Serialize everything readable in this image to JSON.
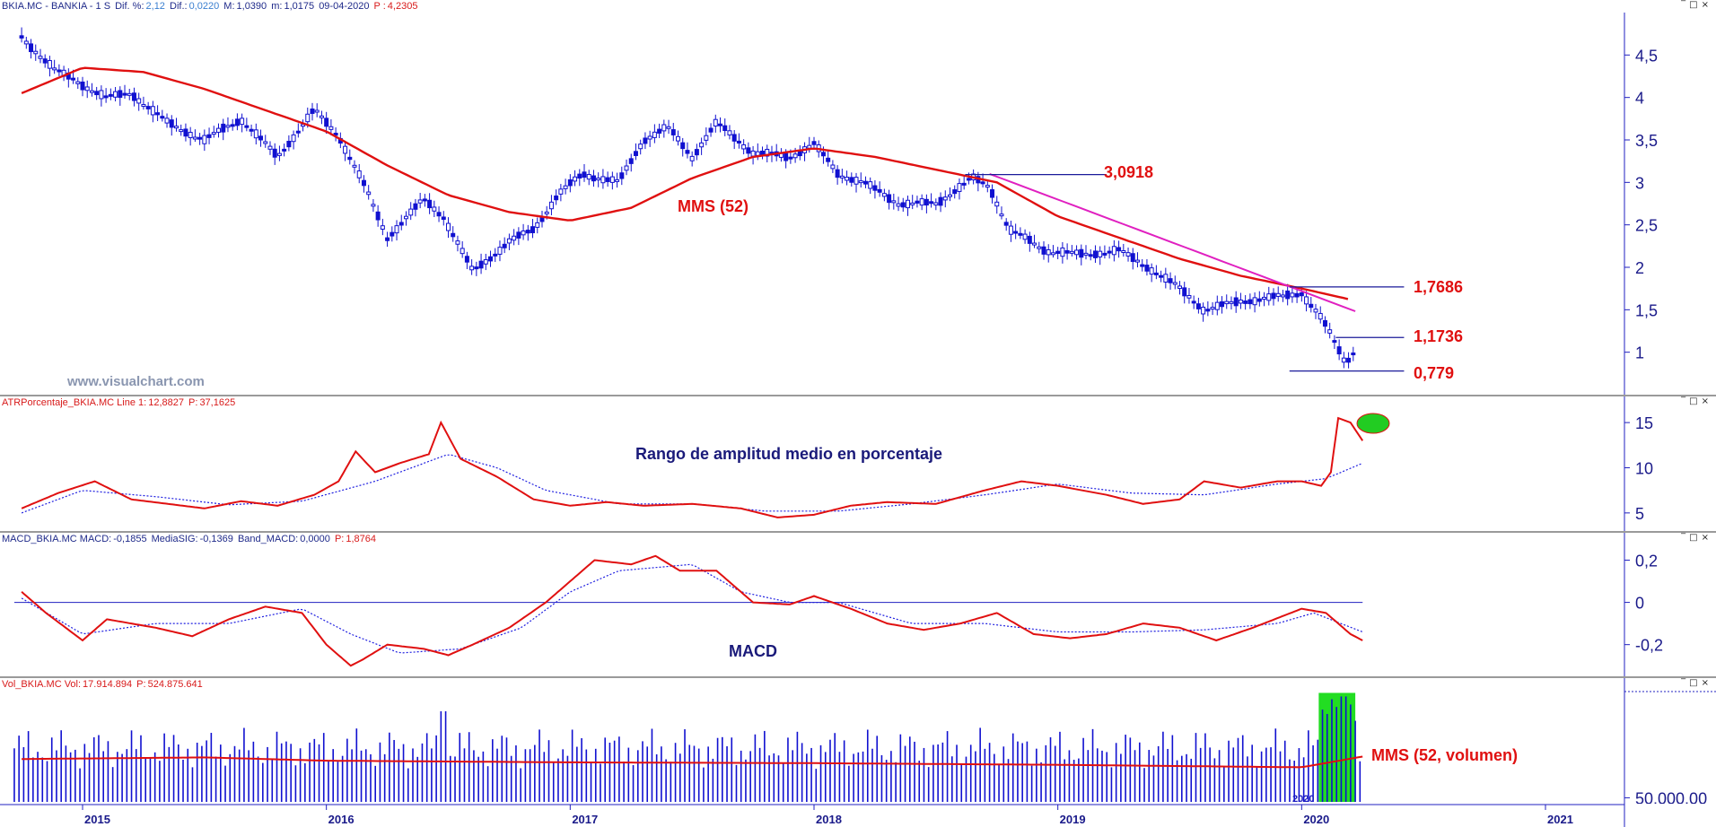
{
  "colors": {
    "price": "#1010d0",
    "mms": "#e01010",
    "trend": "#e020c0",
    "text_red": "#e01010",
    "text_blue": "#1a1a7a",
    "highlight": "#22cc22",
    "axis": "#2020c0"
  },
  "panels": {
    "price": {
      "symbol": "BKIA.MC - BANKIA - 1 S",
      "dif_pct_label": "Dif. %:",
      "dif_pct": "2,12",
      "dif_label": "Dif.:",
      "dif": "0,0220",
      "max_label": "M:",
      "max": "1,0390",
      "min_label": "m:",
      "min": "1,0175",
      "date": "09-04-2020",
      "p_label": "P :",
      "p": "4,2305",
      "watermark": "www.visualchart.com",
      "mms_label": "MMS (52)",
      "levels": {
        "l1": "3,0918",
        "l2": "1,7686",
        "l3": "1,1736",
        "l4": "0,779"
      }
    },
    "atr": {
      "title": "ATRPorcentaje_BKIA.MC Line 1:",
      "line1": "12,8827",
      "p_label": "P:",
      "p": "37,1625",
      "annotation": "Rango de amplitud medio en porcentaje"
    },
    "macd": {
      "title": "MACD_BKIA.MC MACD:",
      "macd": "-0,1855",
      "sig_label": "MediaSIG:",
      "sig": "-0,1369",
      "band_label": "Band_MACD:",
      "band": "0,0000",
      "p_label": "P:",
      "p": "1,8764",
      "annotation": "MACD"
    },
    "volume": {
      "title": "Vol_BKIA.MC Vol:",
      "vol": "17.914.894",
      "p_label": "P:",
      "p": "524.875.641",
      "annotation": "MMS (52, volumen)",
      "year_tag": "2020"
    }
  },
  "window_controls": [
    "‾",
    "□",
    "×"
  ],
  "chart_data": [
    {
      "type": "candlestick",
      "title": "BKIA.MC - BANKIA - 1 S",
      "ylim": [
        0.5,
        5
      ],
      "yticks": [
        "4,5",
        "4",
        "3,5",
        "3",
        "2,5",
        "2",
        "1,5",
        "1"
      ],
      "x_ticks": [
        "2015",
        "2016",
        "2017",
        "2018",
        "2019",
        "2020",
        "2021"
      ],
      "series": [
        {
          "name": "MMS (52)",
          "x": [
            2014.75,
            2015.0,
            2015.25,
            2015.5,
            2015.75,
            2016.0,
            2016.25,
            2016.5,
            2016.75,
            2017.0,
            2017.25,
            2017.5,
            2017.75,
            2018.0,
            2018.25,
            2018.5,
            2018.75,
            2019.0,
            2019.25,
            2019.5,
            2019.75,
            2020.0,
            2020.2
          ],
          "values": [
            4.05,
            4.35,
            4.3,
            4.1,
            3.85,
            3.6,
            3.2,
            2.85,
            2.65,
            2.55,
            2.7,
            3.05,
            3.3,
            3.4,
            3.3,
            3.15,
            3.0,
            2.6,
            2.35,
            2.1,
            1.9,
            1.75,
            1.62
          ]
        },
        {
          "name": "price",
          "x": [
            2014.75,
            2014.9,
            2015.1,
            2015.2,
            2015.35,
            2015.5,
            2015.65,
            2015.8,
            2015.95,
            2016.05,
            2016.15,
            2016.25,
            2016.4,
            2016.48,
            2016.6,
            2016.75,
            2016.85,
            2016.95,
            2017.05,
            2017.2,
            2017.3,
            2017.4,
            2017.5,
            2017.6,
            2017.75,
            2017.9,
            2018.0,
            2018.1,
            2018.2,
            2018.35,
            2018.5,
            2018.65,
            2018.72,
            2018.8,
            2018.95,
            2019.1,
            2019.25,
            2019.4,
            2019.5,
            2019.6,
            2019.75,
            2019.9,
            2020.0,
            2020.08,
            2020.12,
            2020.18,
            2020.22
          ],
          "values": [
            4.7,
            4.3,
            4.0,
            4.05,
            3.7,
            3.5,
            3.75,
            3.3,
            3.85,
            3.55,
            3.0,
            2.35,
            2.8,
            2.6,
            1.95,
            2.3,
            2.45,
            2.85,
            3.1,
            3.0,
            3.5,
            3.65,
            3.3,
            3.7,
            3.35,
            3.3,
            3.45,
            3.1,
            3.0,
            2.75,
            2.75,
            3.05,
            2.95,
            2.45,
            2.2,
            2.15,
            2.2,
            1.95,
            1.75,
            1.5,
            1.6,
            1.65,
            1.7,
            1.4,
            1.2,
            0.88,
            1.03
          ]
        }
      ],
      "lines": [
        {
          "name": "trend",
          "x": [
            2018.72,
            2020.25
          ],
          "values": [
            3.1,
            1.45
          ]
        },
        {
          "name": "3,0918",
          "x": [
            2018.62,
            2019.2
          ],
          "values": [
            3.0918,
            3.0918
          ]
        },
        {
          "name": "1,7686",
          "x": [
            2019.95,
            2020.42
          ],
          "values": [
            1.7686,
            1.7686
          ]
        },
        {
          "name": "1,1736",
          "x": [
            2020.14,
            2020.42
          ],
          "values": [
            1.1736,
            1.1736
          ]
        },
        {
          "name": "0,779",
          "x": [
            2019.95,
            2020.42
          ],
          "values": [
            0.779,
            0.779
          ]
        }
      ]
    },
    {
      "type": "line",
      "title": "ATRPorcentaje_BKIA.MC",
      "ylim": [
        3,
        16.5
      ],
      "yticks": [
        "15",
        "10",
        "5"
      ],
      "series": [
        {
          "name": "Line 1",
          "x": [
            2014.75,
            2014.9,
            2015.05,
            2015.2,
            2015.35,
            2015.5,
            2015.65,
            2015.8,
            2015.95,
            2016.05,
            2016.12,
            2016.2,
            2016.3,
            2016.42,
            2016.47,
            2016.55,
            2016.7,
            2016.85,
            2017.0,
            2017.15,
            2017.3,
            2017.5,
            2017.7,
            2017.85,
            2018.0,
            2018.15,
            2018.3,
            2018.5,
            2018.7,
            2018.85,
            2019.0,
            2019.1,
            2019.2,
            2019.35,
            2019.5,
            2019.6,
            2019.75,
            2019.9,
            2020.0,
            2020.08,
            2020.12,
            2020.15,
            2020.2,
            2020.25
          ],
          "values": [
            5.5,
            7.2,
            8.5,
            6.5,
            6.0,
            5.5,
            6.3,
            5.8,
            7.0,
            8.5,
            11.8,
            9.5,
            10.5,
            11.5,
            15.0,
            11.0,
            9.0,
            6.5,
            5.8,
            6.2,
            5.8,
            6.0,
            5.5,
            4.5,
            4.8,
            5.8,
            6.2,
            6.0,
            7.5,
            8.5,
            8.0,
            7.5,
            7.0,
            6.0,
            6.5,
            8.5,
            7.8,
            8.5,
            8.5,
            8.0,
            9.5,
            15.5,
            15.0,
            13.0
          ]
        },
        {
          "name": "signal",
          "x": [
            2014.75,
            2015.0,
            2015.3,
            2015.6,
            2015.9,
            2016.2,
            2016.5,
            2016.7,
            2016.9,
            2017.2,
            2017.5,
            2017.8,
            2018.1,
            2018.4,
            2018.7,
            2019.0,
            2019.3,
            2019.6,
            2019.9,
            2020.1,
            2020.25
          ],
          "values": [
            5.0,
            7.5,
            6.8,
            5.9,
            6.3,
            8.5,
            11.5,
            10.0,
            7.5,
            6.0,
            6.0,
            5.2,
            5.2,
            6.0,
            7.0,
            8.2,
            7.2,
            7.0,
            8.2,
            8.8,
            10.5
          ]
        }
      ]
    },
    {
      "type": "line",
      "title": "MACD_BKIA.MC",
      "ylim": [
        -0.35,
        0.27
      ],
      "yticks": [
        "0,2",
        "0",
        "-0,2"
      ],
      "series": [
        {
          "name": "MACD",
          "x": [
            2014.75,
            2014.85,
            2015.0,
            2015.1,
            2015.3,
            2015.45,
            2015.6,
            2015.75,
            2015.9,
            2016.0,
            2016.1,
            2016.15,
            2016.25,
            2016.4,
            2016.5,
            2016.6,
            2016.75,
            2016.9,
            2017.0,
            2017.1,
            2017.25,
            2017.35,
            2017.45,
            2017.6,
            2017.75,
            2017.9,
            2018.0,
            2018.15,
            2018.3,
            2018.45,
            2018.6,
            2018.75,
            2018.9,
            2019.05,
            2019.2,
            2019.35,
            2019.5,
            2019.65,
            2019.8,
            2020.0,
            2020.1,
            2020.2,
            2020.25
          ],
          "values": [
            0.05,
            -0.05,
            -0.18,
            -0.08,
            -0.12,
            -0.16,
            -0.08,
            -0.02,
            -0.05,
            -0.2,
            -0.3,
            -0.27,
            -0.2,
            -0.22,
            -0.25,
            -0.2,
            -0.12,
            0.0,
            0.1,
            0.2,
            0.18,
            0.22,
            0.15,
            0.15,
            0.0,
            -0.01,
            0.03,
            -0.03,
            -0.1,
            -0.13,
            -0.1,
            -0.05,
            -0.15,
            -0.17,
            -0.15,
            -0.1,
            -0.12,
            -0.18,
            -0.12,
            -0.03,
            -0.05,
            -0.15,
            -0.18
          ]
        },
        {
          "name": "MediaSIG",
          "x": [
            2014.75,
            2015.0,
            2015.3,
            2015.6,
            2015.9,
            2016.1,
            2016.3,
            2016.55,
            2016.8,
            2017.0,
            2017.2,
            2017.5,
            2017.7,
            2017.9,
            2018.1,
            2018.4,
            2018.7,
            2019.0,
            2019.3,
            2019.6,
            2019.9,
            2020.05,
            2020.25
          ],
          "values": [
            0.02,
            -0.15,
            -0.1,
            -0.1,
            -0.03,
            -0.15,
            -0.24,
            -0.22,
            -0.12,
            0.05,
            0.15,
            0.18,
            0.05,
            0.0,
            0.0,
            -0.1,
            -0.1,
            -0.14,
            -0.14,
            -0.13,
            -0.1,
            -0.05,
            -0.14
          ]
        }
      ],
      "reference_line": 0
    },
    {
      "type": "bar",
      "title": "Vol_BKIA.MC",
      "ylim": [
        0,
        135000000
      ],
      "yticks": [
        "50.000.00"
      ],
      "highlight_range": [
        2020.07,
        2020.22
      ],
      "series": [
        {
          "name": "Vol",
          "x_start": 2014.72,
          "x_end": 2020.24,
          "typical_values": [
            40000000,
            90000000
          ],
          "peak_values": [
            {
              "x": 2016.48,
              "value": 110000000
            },
            {
              "x": 2020.17,
              "value": 128000000
            }
          ]
        },
        {
          "name": "MMS (52, volumen)",
          "x": [
            2014.75,
            2015.5,
            2016.0,
            2017.0,
            2018.0,
            2019.0,
            2020.0,
            2020.25
          ],
          "values": [
            52000000,
            54000000,
            50000000,
            48000000,
            47000000,
            45000000,
            42000000,
            55000000
          ]
        }
      ]
    }
  ]
}
